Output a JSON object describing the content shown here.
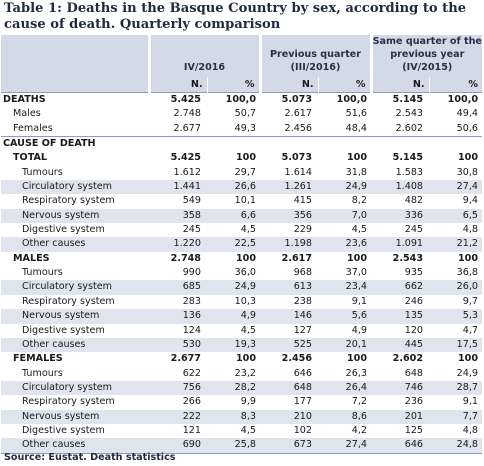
{
  "title": "Table 1: Deaths in the Basque Country by sex, according to the cause of death. Quarterly comparison",
  "headers": {
    "col1": "IV/2016",
    "col2": "Previous quarter (III/2016)",
    "col3": "Same quarter of the previous year (IV/2015)",
    "n": "N.",
    "pct": "%"
  },
  "deaths": {
    "label": "DEATHS",
    "rows": [
      {
        "label": "DEATHS",
        "v": [
          "5.425",
          "100,0",
          "5.073",
          "100,0",
          "5.145",
          "100,0"
        ]
      },
      {
        "label": "Males",
        "v": [
          "2.748",
          "50,7",
          "2.617",
          "51,6",
          "2.543",
          "49,4"
        ]
      },
      {
        "label": "Females",
        "v": [
          "2.677",
          "49,3",
          "2.456",
          "48,4",
          "2.602",
          "50,6"
        ]
      }
    ]
  },
  "cause": {
    "label": "CAUSE OF DEATH",
    "groups": [
      {
        "label": "TOTAL",
        "v": [
          "5.425",
          "100",
          "5.073",
          "100",
          "5.145",
          "100"
        ],
        "rows": [
          {
            "label": "Tumours",
            "v": [
              "1.612",
              "29,7",
              "1.614",
              "31,8",
              "1.583",
              "30,8"
            ]
          },
          {
            "label": "Circulatory system",
            "v": [
              "1.441",
              "26,6",
              "1.261",
              "24,9",
              "1.408",
              "27,4"
            ]
          },
          {
            "label": "Respiratory system",
            "v": [
              "549",
              "10,1",
              "415",
              "8,2",
              "482",
              "9,4"
            ]
          },
          {
            "label": "Nervous system",
            "v": [
              "358",
              "6,6",
              "356",
              "7,0",
              "336",
              "6,5"
            ]
          },
          {
            "label": "Digestive system",
            "v": [
              "245",
              "4,5",
              "229",
              "4,5",
              "245",
              "4,8"
            ]
          },
          {
            "label": "Other causes",
            "v": [
              "1.220",
              "22,5",
              "1.198",
              "23,6",
              "1.091",
              "21,2"
            ]
          }
        ]
      },
      {
        "label": "MALES",
        "v": [
          "2.748",
          "100",
          "2.617",
          "100",
          "2.543",
          "100"
        ],
        "rows": [
          {
            "label": "Tumours",
            "v": [
              "990",
              "36,0",
              "968",
              "37,0",
              "935",
              "36,8"
            ]
          },
          {
            "label": "Circulatory system",
            "v": [
              "685",
              "24,9",
              "613",
              "23,4",
              "662",
              "26,0"
            ]
          },
          {
            "label": "Respiratory system",
            "v": [
              "283",
              "10,3",
              "238",
              "9,1",
              "246",
              "9,7"
            ]
          },
          {
            "label": "Nervous system",
            "v": [
              "136",
              "4,9",
              "146",
              "5,6",
              "135",
              "5,3"
            ]
          },
          {
            "label": "Digestive system",
            "v": [
              "124",
              "4,5",
              "127",
              "4,9",
              "120",
              "4,7"
            ]
          },
          {
            "label": "Other causes",
            "v": [
              "530",
              "19,3",
              "525",
              "20,1",
              "445",
              "17,5"
            ]
          }
        ]
      },
      {
        "label": "FEMALES",
        "v": [
          "2.677",
          "100",
          "2.456",
          "100",
          "2.602",
          "100"
        ],
        "rows": [
          {
            "label": "Tumours",
            "v": [
              "622",
              "23,2",
              "646",
              "26,3",
              "648",
              "24,9"
            ]
          },
          {
            "label": "Circulatory system",
            "v": [
              "756",
              "28,2",
              "648",
              "26,4",
              "746",
              "28,7"
            ]
          },
          {
            "label": "Respiratory system",
            "v": [
              "266",
              "9,9",
              "177",
              "7,2",
              "236",
              "9,1"
            ]
          },
          {
            "label": "Nervous system",
            "v": [
              "222",
              "8,3",
              "210",
              "8,6",
              "201",
              "7,7"
            ]
          },
          {
            "label": "Digestive system",
            "v": [
              "121",
              "4,5",
              "102",
              "4,2",
              "125",
              "4,8"
            ]
          },
          {
            "label": "Other causes",
            "v": [
              "690",
              "25,8",
              "673",
              "27,4",
              "646",
              "24,8"
            ]
          }
        ]
      }
    ]
  },
  "source": "Source: Eustat. Death statistics",
  "colors": {
    "header_bg": "#d3dae7",
    "band_bg": "#dfe4ee",
    "title": "#222a40"
  }
}
